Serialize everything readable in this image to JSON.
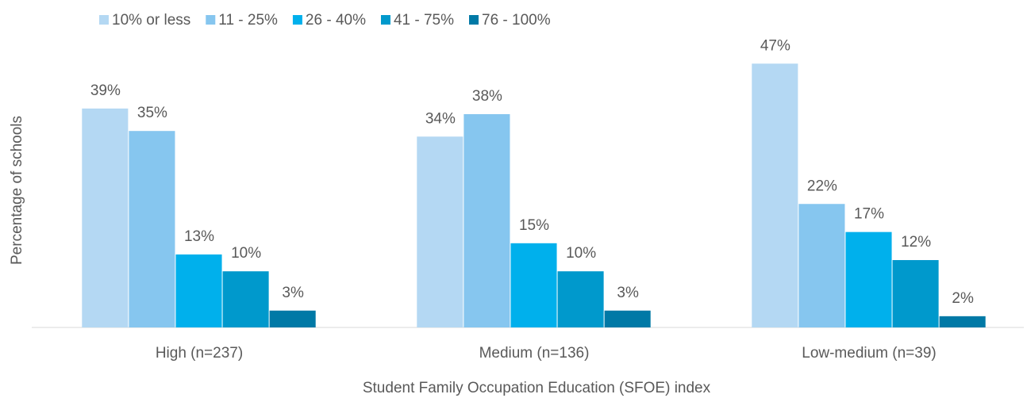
{
  "chart_data": {
    "type": "bar",
    "x_label": "Student Family Occupation Education (SFOE) index",
    "y_label": "Percentage of schools",
    "categories": [
      "High (n=237)",
      "Medium (n=136)",
      "Low-medium (n=39)"
    ],
    "series": [
      {
        "name": "10% or less",
        "color": "#b4d8f3",
        "values": [
          39,
          34,
          47
        ],
        "value_labels": [
          "39%",
          "34%",
          "47%"
        ]
      },
      {
        "name": "11 - 25%",
        "color": "#86c6ef",
        "values": [
          35,
          38,
          22
        ],
        "value_labels": [
          "35%",
          "38%",
          "22%"
        ]
      },
      {
        "name": "26 - 40%",
        "color": "#00b0ec",
        "values": [
          13,
          15,
          17
        ],
        "value_labels": [
          "13%",
          "15%",
          "17%"
        ]
      },
      {
        "name": "41 - 75%",
        "color": "#0099cc",
        "values": [
          10,
          10,
          12
        ],
        "value_labels": [
          "10%",
          "10%",
          "12%"
        ]
      },
      {
        "name": "76 - 100%",
        "color": "#0079a6",
        "values": [
          3,
          3,
          2
        ],
        "value_labels": [
          "3%",
          "3%",
          "2%"
        ]
      }
    ],
    "ylim": [
      0,
      50
    ],
    "legend": "top"
  }
}
